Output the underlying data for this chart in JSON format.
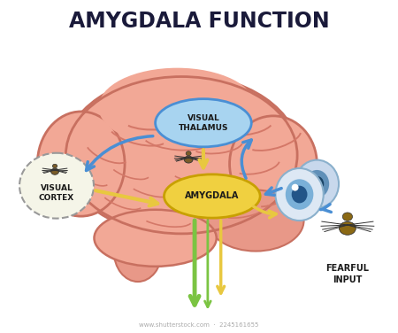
{
  "title": "AMYGDALA FUNCTION",
  "title_fontsize": 17,
  "title_fontweight": "bold",
  "title_color": "#1a1a3a",
  "bg_color": "#ffffff",
  "brain_color": "#f2a896",
  "brain_outline": "#c87060",
  "brain_fold_color": "#d47868",
  "visual_thalamus_label": "VISUAL\nTHALAMUS",
  "amygdala_label": "AMYGDALA",
  "visual_cortex_label": "VISUAL\nCORTEX",
  "fearful_input_label": "FEARFUL\nINPUT",
  "label_fontsize": 6.5,
  "arrow_blue": "#4a8fd4",
  "arrow_green": "#7bc442",
  "arrow_yellow": "#e8c840",
  "arrow_yellow_dark": "#c8a800",
  "node_thalamus_face": "#a8d4f0",
  "node_thalamus_edge": "#4a8fd4",
  "node_amygdala_face": "#f0d040",
  "node_amygdala_edge": "#c8a000",
  "node_cortex_face": "#f5f5e8",
  "node_cortex_edge": "#999999",
  "eye_white": "#e8f0f8",
  "eye_blue": "#7ab0d8",
  "eye_dark": "#336699",
  "spider_color": "#7a5c28",
  "footer": "www.shutterstock.com  ·  2245161655",
  "footer_fontsize": 5
}
